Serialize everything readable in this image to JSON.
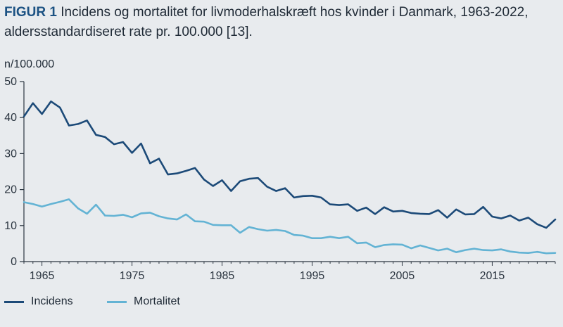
{
  "header": {
    "figure_label": "FIGUR 1",
    "title": "Incidens og mortalitet for livmoderhalskræft hos kvinder i Danmark, 1963-2022, aldersstandardiseret rate pr. 100.000 [13]."
  },
  "colors": {
    "incidens": "#1c4a78",
    "mortalitet": "#63b3d4",
    "axis": "#2b3540"
  },
  "chart_data": {
    "type": "line",
    "title": "Incidens og mortalitet for livmoderhalskræft hos kvinder i Danmark, 1963-2022, aldersstandardiseret rate pr. 100.000 [13].",
    "ylabel": "n/100.000",
    "xlabel": "",
    "ylim": [
      0,
      50
    ],
    "xlim": [
      1963,
      2022
    ],
    "yticks": [
      0,
      10,
      20,
      30,
      40,
      50
    ],
    "xticks": [
      1965,
      1975,
      1985,
      1995,
      2005,
      2015
    ],
    "grid": false,
    "legend_position": "bottom-left",
    "x": [
      1963,
      1964,
      1965,
      1966,
      1967,
      1968,
      1969,
      1970,
      1971,
      1972,
      1973,
      1974,
      1975,
      1976,
      1977,
      1978,
      1979,
      1980,
      1981,
      1982,
      1983,
      1984,
      1985,
      1986,
      1987,
      1988,
      1989,
      1990,
      1991,
      1992,
      1993,
      1994,
      1995,
      1996,
      1997,
      1998,
      1999,
      2000,
      2001,
      2002,
      2003,
      2004,
      2005,
      2006,
      2007,
      2008,
      2009,
      2010,
      2011,
      2012,
      2013,
      2014,
      2015,
      2016,
      2017,
      2018,
      2019,
      2020,
      2021,
      2022
    ],
    "series": [
      {
        "name": "Incidens",
        "values": [
          40.3,
          44.0,
          41.0,
          44.5,
          42.8,
          37.8,
          38.2,
          39.2,
          35.2,
          34.6,
          32.6,
          33.2,
          30.2,
          32.8,
          27.3,
          28.6,
          24.2,
          24.5,
          25.2,
          26.0,
          22.8,
          21.0,
          22.6,
          19.6,
          22.3,
          23.0,
          23.2,
          20.8,
          19.6,
          20.4,
          17.8,
          18.2,
          18.3,
          17.8,
          15.9,
          15.7,
          15.9,
          14.1,
          15.0,
          13.2,
          15.1,
          13.9,
          14.1,
          13.5,
          13.3,
          13.2,
          14.3,
          12.2,
          14.5,
          13.1,
          13.2,
          15.2,
          12.5,
          12.0,
          12.8,
          11.4,
          12.2,
          10.4,
          9.4,
          11.7
        ]
      },
      {
        "name": "Mortalitet",
        "values": [
          16.5,
          16.0,
          15.3,
          16.0,
          16.6,
          17.3,
          14.8,
          13.3,
          15.8,
          12.8,
          12.7,
          13.0,
          12.3,
          13.4,
          13.6,
          12.6,
          12.0,
          11.7,
          13.1,
          11.2,
          11.1,
          10.2,
          10.1,
          10.1,
          8.0,
          9.6,
          9.0,
          8.6,
          8.8,
          8.5,
          7.4,
          7.2,
          6.5,
          6.5,
          6.9,
          6.5,
          6.9,
          5.1,
          5.3,
          4.0,
          4.6,
          4.8,
          4.7,
          3.7,
          4.5,
          3.8,
          3.1,
          3.6,
          2.6,
          3.2,
          3.6,
          3.2,
          3.1,
          3.4,
          2.8,
          2.5,
          2.4,
          2.7,
          2.3,
          2.4
        ]
      }
    ]
  }
}
